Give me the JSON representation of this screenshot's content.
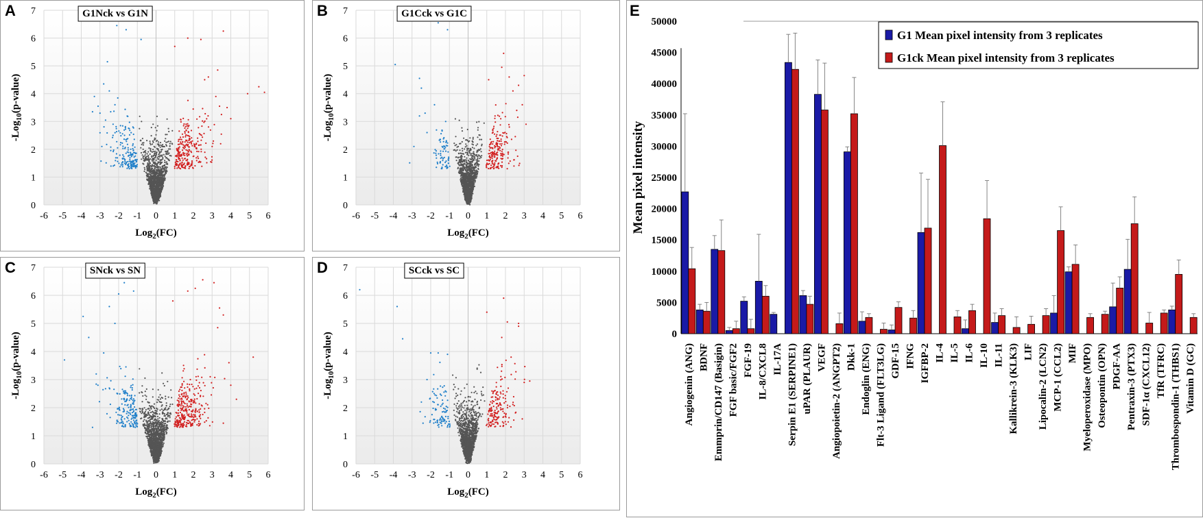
{
  "chart_data": [
    {
      "panel": "A",
      "type": "scatter",
      "title": "G1Nck vs G1N",
      "xlabel_main": "Log",
      "xlabel_sub": "2",
      "xlabel_tail": "(FC)",
      "ylabel_main": "-Log",
      "ylabel_sub": "10",
      "ylabel_tail": "(p-value)",
      "xlim": [
        -6,
        6
      ],
      "ylim": [
        0,
        7
      ],
      "xticks": [
        "-6",
        "-5",
        "-4",
        "-3",
        "-2",
        "-1",
        "0",
        "1",
        "2",
        "3",
        "4",
        "5",
        "6"
      ],
      "yticks": [
        "0",
        "1",
        "2",
        "3",
        "4",
        "5",
        "6",
        "7"
      ],
      "series_colors": {
        "down": "#1f7fc9",
        "up": "#d21f1f",
        "ns": "#555555"
      },
      "outliers_down": [
        [
          -2.6,
          6.7
        ],
        [
          -2.1,
          6.45
        ],
        [
          -1.6,
          6.3
        ],
        [
          -0.8,
          5.95
        ],
        [
          -2.6,
          5.15
        ],
        [
          -3.3,
          3.9
        ],
        [
          -3.1,
          3.55
        ],
        [
          -2.8,
          4.35
        ],
        [
          -2.5,
          4.1
        ],
        [
          -2.2,
          3.6
        ],
        [
          -3.0,
          3.3
        ],
        [
          -2.7,
          3.05
        ],
        [
          -1.9,
          2.85
        ],
        [
          -2.3,
          2.5
        ],
        [
          -3.4,
          3.35
        ],
        [
          -2.9,
          2.1
        ]
      ],
      "outliers_up": [
        [
          3.6,
          6.25
        ],
        [
          1.7,
          6.0
        ],
        [
          1.0,
          5.7
        ],
        [
          2.4,
          5.95
        ],
        [
          3.3,
          4.85
        ],
        [
          5.5,
          4.25
        ],
        [
          5.8,
          4.05
        ],
        [
          4.9,
          4.0
        ],
        [
          3.8,
          3.5
        ],
        [
          4.0,
          3.1
        ],
        [
          3.5,
          3.25
        ],
        [
          2.6,
          4.5
        ],
        [
          2.8,
          4.6
        ],
        [
          3.2,
          3.9
        ],
        [
          3.0,
          2.1
        ],
        [
          3.4,
          3.55
        ]
      ],
      "n_ns": 1400,
      "n_down": 170,
      "n_up": 260,
      "cloud_spread": 1.0
    },
    {
      "panel": "B",
      "type": "scatter",
      "title": "G1Cck vs G1C",
      "xlabel_main": "Log",
      "xlabel_sub": "2",
      "xlabel_tail": "(FC)",
      "ylabel_main": "-Log",
      "ylabel_sub": "10",
      "ylabel_tail": "(p-value)",
      "xlim": [
        -6,
        6
      ],
      "ylim": [
        0,
        7
      ],
      "xticks": [
        "-6",
        "-5",
        "-4",
        "-3",
        "-2",
        "-1",
        "0",
        "1",
        "2",
        "3",
        "4",
        "5",
        "6"
      ],
      "yticks": [
        "0",
        "1",
        "2",
        "3",
        "4",
        "5",
        "6",
        "7"
      ],
      "series_colors": {
        "down": "#1f7fc9",
        "up": "#d21f1f",
        "ns": "#555555"
      },
      "outliers_down": [
        [
          -1.6,
          6.55
        ],
        [
          -1.1,
          6.3
        ],
        [
          -3.9,
          5.05
        ],
        [
          -2.6,
          4.55
        ],
        [
          -2.5,
          4.2
        ],
        [
          -2.6,
          3.2
        ],
        [
          -2.3,
          3.3
        ],
        [
          -1.8,
          3.6
        ],
        [
          -2.9,
          2.1
        ],
        [
          -2.2,
          2.6
        ],
        [
          -1.2,
          3.0
        ]
      ],
      "outliers_up": [
        [
          1.9,
          5.45
        ],
        [
          1.8,
          4.95
        ],
        [
          2.2,
          4.6
        ],
        [
          3.0,
          4.65
        ],
        [
          2.4,
          4.1
        ],
        [
          2.7,
          4.3
        ],
        [
          2.9,
          3.6
        ],
        [
          3.1,
          2.9
        ],
        [
          2.6,
          3.4
        ],
        [
          1.1,
          4.5
        ]
      ],
      "n_ns": 1300,
      "n_down": 70,
      "n_up": 190,
      "cloud_spread": 0.85
    },
    {
      "panel": "C",
      "type": "scatter",
      "title": "SNck vs SN",
      "xlabel_main": "Log",
      "xlabel_sub": "2",
      "xlabel_tail": "(FC)",
      "ylabel_main": "-Log",
      "ylabel_sub": "10",
      "ylabel_tail": "(p-value)",
      "xlim": [
        -6,
        6
      ],
      "ylim": [
        0,
        7
      ],
      "xticks": [
        "-6",
        "-5",
        "-4",
        "-3",
        "-2",
        "-1",
        "0",
        "1",
        "2",
        "3",
        "4",
        "5",
        "6"
      ],
      "yticks": [
        "0",
        "1",
        "2",
        "3",
        "4",
        "5",
        "6",
        "7"
      ],
      "series_colors": {
        "down": "#1f7fc9",
        "up": "#d21f1f",
        "ns": "#555555"
      },
      "outliers_down": [
        [
          -2.0,
          6.65
        ],
        [
          -1.7,
          6.45
        ],
        [
          -1.2,
          6.15
        ],
        [
          -2.0,
          6.05
        ],
        [
          -2.5,
          5.6
        ],
        [
          -3.9,
          5.25
        ],
        [
          -2.2,
          5.0
        ],
        [
          -3.6,
          4.5
        ],
        [
          -4.9,
          3.7
        ],
        [
          -2.8,
          3.95
        ],
        [
          -3.2,
          3.2
        ],
        [
          -2.5,
          2.7
        ],
        [
          -3.4,
          1.3
        ]
      ],
      "outliers_up": [
        [
          2.5,
          6.55
        ],
        [
          3.1,
          6.45
        ],
        [
          1.7,
          6.15
        ],
        [
          2.1,
          6.25
        ],
        [
          0.9,
          5.8
        ],
        [
          3.4,
          5.55
        ],
        [
          3.6,
          5.3
        ],
        [
          3.3,
          4.85
        ],
        [
          5.2,
          3.8
        ],
        [
          3.9,
          3.6
        ],
        [
          4.3,
          2.3
        ],
        [
          3.6,
          1.45
        ],
        [
          4.0,
          2.8
        ],
        [
          2.9,
          3.1
        ]
      ],
      "n_ns": 1500,
      "n_down": 180,
      "n_up": 300,
      "cloud_spread": 1.05
    },
    {
      "panel": "D",
      "type": "scatter",
      "title": "SCck vs SC",
      "xlabel_main": "Log",
      "xlabel_sub": "2",
      "xlabel_tail": "(FC)",
      "ylabel_main": "-Log",
      "ylabel_sub": "10",
      "ylabel_tail": "(p-value)",
      "xlim": [
        -6,
        6
      ],
      "ylim": [
        0,
        7
      ],
      "xticks": [
        "-6",
        "-5",
        "-4",
        "-3",
        "-2",
        "-1",
        "0",
        "1",
        "2",
        "3",
        "4",
        "5",
        "6"
      ],
      "yticks": [
        "0",
        "1",
        "2",
        "3",
        "4",
        "5",
        "6",
        "7"
      ],
      "series_colors": {
        "down": "#1f7fc9",
        "up": "#d21f1f",
        "ns": "#555555"
      },
      "outliers_down": [
        [
          -5.8,
          6.2
        ],
        [
          -3.8,
          5.6
        ],
        [
          -3.5,
          4.45
        ],
        [
          -2.0,
          3.95
        ],
        [
          -1.6,
          3.95
        ],
        [
          -1.1,
          3.9
        ],
        [
          -2.2,
          3.0
        ],
        [
          -2.5,
          2.2
        ]
      ],
      "outliers_up": [
        [
          1.9,
          5.9
        ],
        [
          1.0,
          5.4
        ],
        [
          2.1,
          5.05
        ],
        [
          2.7,
          5.0
        ],
        [
          2.7,
          4.9
        ],
        [
          1.8,
          4.5
        ],
        [
          3.0,
          2.9
        ],
        [
          3.3,
          2.95
        ],
        [
          2.9,
          1.6
        ],
        [
          2.3,
          3.8
        ]
      ],
      "n_ns": 1300,
      "n_down": 90,
      "n_up": 170,
      "cloud_spread": 0.9
    },
    {
      "panel": "E",
      "type": "bar",
      "ylabel": "Mean pixel intensity",
      "ylim": [
        0,
        50000
      ],
      "yticks": [
        "0",
        "5000",
        "10000",
        "15000",
        "20000",
        "25000",
        "30000",
        "35000",
        "40000",
        "45000",
        "50000"
      ],
      "categories": [
        "Angiogenin (ANG)",
        "BDNF",
        "Emmprin/CD147 (Basigin)",
        "FGF basic/FGF2",
        "FGF-19",
        "IL-8/CXCL8",
        "IL-17A",
        "Serpin E1 (SERPINE1)",
        "uPAR (PLAUR)",
        "VEGF",
        "Angiopoietin-2 (ANGPT2)",
        "Dkk-1",
        "Endoglin (ENG)",
        "Flt-3 Ligand (FLT3LG)",
        "GDF-15",
        "IFNG",
        "IGFBP-2",
        "IL-4",
        "IL-5",
        "IL-6",
        "IL-10",
        "IL-11",
        "Kallikrein-3 (KLK3)",
        "LIF",
        "Lipocalin-2 (LCN2)",
        "MCP-1 (CCL2)",
        "MIF",
        "Myeloperoxidase (MPO)",
        "Osteopontin (OPN)",
        "PDGF-AA",
        "Pentraxin-3 (PTX3)",
        "SDF-1α (CXCL12)",
        "TfR (TFRC)",
        "Thrombospondin-1 (THBS1)",
        "Vitamin D (GC)"
      ],
      "series": [
        {
          "name": "G1 Mean pixel intensity from 3 replicates",
          "color": "#1a1aa6",
          "values": [
            22700,
            3800,
            13500,
            500,
            5200,
            8400,
            3100,
            43400,
            6100,
            38300,
            0,
            29100,
            2000,
            0,
            600,
            0,
            16200,
            0,
            0,
            800,
            0,
            1800,
            0,
            0,
            0,
            3300,
            9900,
            0,
            0,
            4300,
            10300,
            0,
            0,
            3800,
            0
          ],
          "errors": [
            12500,
            900,
            2200,
            500,
            700,
            7500,
            300,
            4500,
            800,
            5500,
            0,
            800,
            1500,
            0,
            800,
            0,
            9500,
            0,
            0,
            1400,
            0,
            1500,
            0,
            0,
            0,
            2800,
            800,
            0,
            0,
            3800,
            4800,
            0,
            0,
            600,
            0
          ]
        },
        {
          "name": "G1ck Mean pixel intensity from 3 replicates",
          "color": "#c41a1a",
          "values": [
            10400,
            3600,
            13300,
            800,
            800,
            6000,
            0,
            42300,
            4700,
            35800,
            1600,
            35200,
            2600,
            700,
            4200,
            2500,
            16900,
            30100,
            2700,
            3700,
            18400,
            2900,
            1000,
            1500,
            2900,
            16500,
            11100,
            2600,
            3100,
            7300,
            17600,
            1700,
            3300,
            9500,
            2600
          ],
          "errors": [
            3400,
            1400,
            4900,
            1200,
            1500,
            1700,
            0,
            5800,
            1300,
            7500,
            1700,
            5800,
            600,
            1000,
            900,
            1200,
            7800,
            7000,
            1000,
            1000,
            6100,
            1100,
            1700,
            1300,
            1100,
            3800,
            3100,
            600,
            500,
            1800,
            4300,
            1700,
            500,
            2300,
            600
          ]
        }
      ]
    }
  ]
}
